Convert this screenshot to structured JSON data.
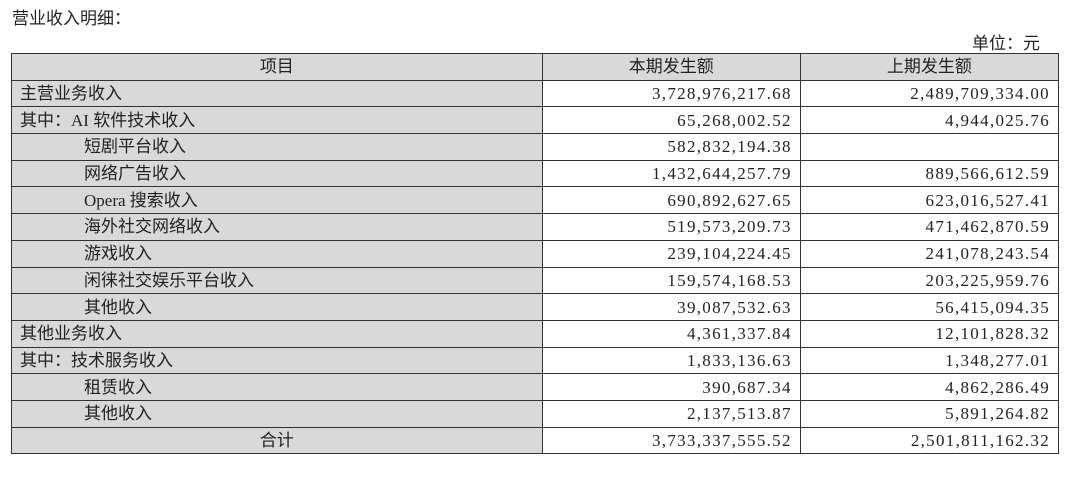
{
  "title": "营业收入明细：",
  "unit": "单位：元",
  "table": {
    "headers": [
      "项目",
      "本期发生额",
      "上期发生额"
    ],
    "rows": [
      {
        "label": "主营业务收入",
        "current": "3,728,976,217.68",
        "previous": "2,489,709,334.00",
        "indent": false
      },
      {
        "label": "其中：AI 软件技术收入",
        "current": "65,268,002.52",
        "previous": "4,944,025.76",
        "indent": false
      },
      {
        "label": "短剧平台收入",
        "current": "582,832,194.38",
        "previous": "",
        "indent": true
      },
      {
        "label": "网络广告收入",
        "current": "1,432,644,257.79",
        "previous": "889,566,612.59",
        "indent": true
      },
      {
        "label": "Opera 搜索收入",
        "current": "690,892,627.65",
        "previous": "623,016,527.41",
        "indent": true
      },
      {
        "label": "海外社交网络收入",
        "current": "519,573,209.73",
        "previous": "471,462,870.59",
        "indent": true
      },
      {
        "label": "游戏收入",
        "current": "239,104,224.45",
        "previous": "241,078,243.54",
        "indent": true
      },
      {
        "label": "闲徕社交娱乐平台收入",
        "current": "159,574,168.53",
        "previous": "203,225,959.76",
        "indent": true
      },
      {
        "label": "其他收入",
        "current": "39,087,532.63",
        "previous": "56,415,094.35",
        "indent": true
      },
      {
        "label": "其他业务收入",
        "current": "4,361,337.84",
        "previous": "12,101,828.32",
        "indent": false
      },
      {
        "label": "其中：技术服务收入",
        "current": "1,833,136.63",
        "previous": "1,348,277.01",
        "indent": false
      },
      {
        "label": "租赁收入",
        "current": "390,687.34",
        "previous": "4,862,286.49",
        "indent": true
      },
      {
        "label": "其他收入",
        "current": "2,137,513.87",
        "previous": "5,891,264.82",
        "indent": true
      }
    ],
    "total": {
      "label": "合计",
      "current": "3,733,337,555.52",
      "previous": "2,501,811,162.32"
    }
  }
}
